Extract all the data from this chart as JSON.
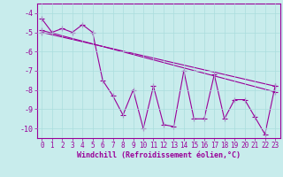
{
  "xlabel": "Windchill (Refroidissement éolien,°C)",
  "ylabel": "",
  "bg_color": "#c8ecec",
  "line_color": "#990099",
  "grid_color": "#aadddd",
  "xlim": [
    -0.5,
    23.5
  ],
  "ylim": [
    -10.5,
    -3.5
  ],
  "yticks": [
    -4,
    -5,
    -6,
    -7,
    -8,
    -9,
    -10
  ],
  "xticks": [
    0,
    1,
    2,
    3,
    4,
    5,
    6,
    7,
    8,
    9,
    10,
    11,
    12,
    13,
    14,
    15,
    16,
    17,
    18,
    19,
    20,
    21,
    22,
    23
  ],
  "series1_x": [
    0,
    1,
    2,
    3,
    4,
    5,
    6,
    7,
    8,
    9,
    10,
    11,
    12,
    13,
    14,
    15,
    16,
    17,
    18,
    19,
    20,
    21,
    22,
    23
  ],
  "series1_y": [
    -4.3,
    -5.0,
    -4.8,
    -5.0,
    -4.6,
    -5.0,
    -7.5,
    -8.3,
    -9.3,
    -8.0,
    -10.0,
    -7.8,
    -9.8,
    -9.9,
    -7.0,
    -9.5,
    -9.5,
    -7.2,
    -9.5,
    -8.5,
    -8.5,
    -9.4,
    -10.3,
    -7.8
  ],
  "series2_x": [
    0,
    23
  ],
  "series2_y": [
    -5.0,
    -7.8
  ],
  "series3_x": [
    0,
    23
  ],
  "series3_y": [
    -4.9,
    -8.1
  ],
  "marker": "+",
  "markersize": 4,
  "linewidth": 0.8
}
